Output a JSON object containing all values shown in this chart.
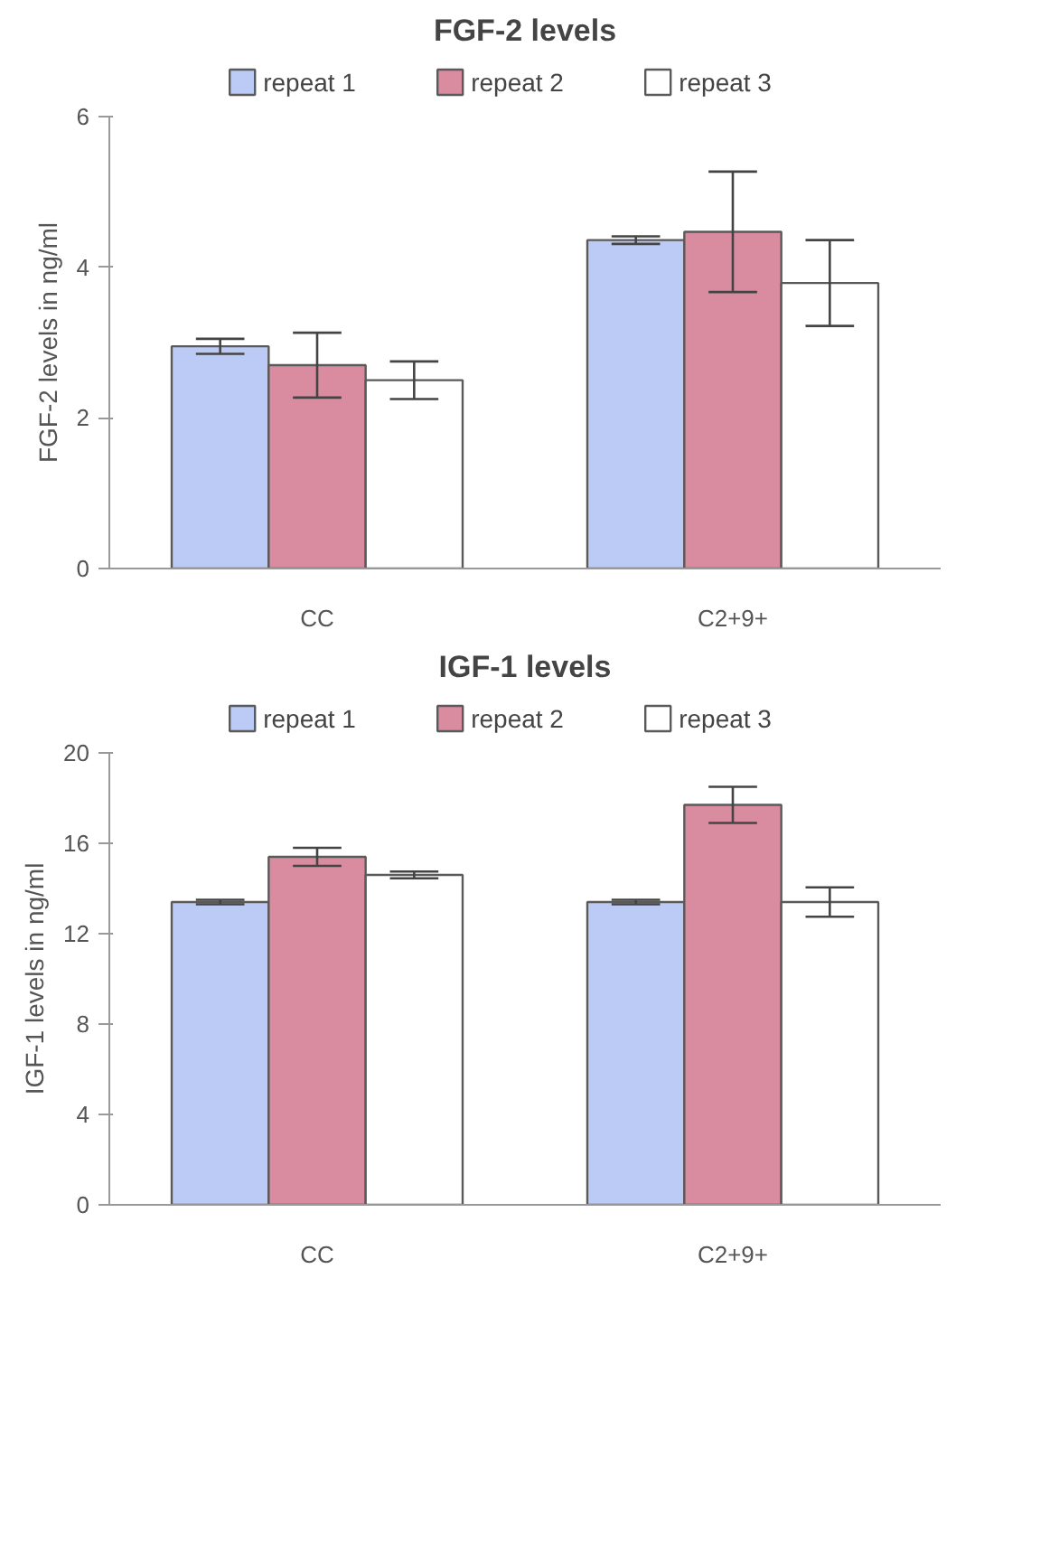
{
  "chart_data": [
    {
      "type": "bar",
      "title": "FGF-2 levels",
      "ylabel": "FGF-2 levels in ng/ml",
      "categories": [
        "CC",
        "C2+9+"
      ],
      "series": [
        {
          "name": "repeat 1",
          "color": "#bccbf5",
          "values": [
            2.95,
            4.36
          ],
          "errors": [
            0.1,
            0.05
          ]
        },
        {
          "name": "repeat 2",
          "color": "#d98ca0",
          "values": [
            2.7,
            4.47
          ],
          "errors": [
            0.43,
            0.8
          ]
        },
        {
          "name": "repeat 3",
          "color": "#ffffff",
          "values": [
            2.5,
            3.79
          ],
          "errors": [
            0.25,
            0.57
          ]
        }
      ],
      "ylim": [
        0,
        6
      ],
      "yticks": [
        0,
        2,
        4,
        6
      ],
      "grid": false,
      "legend": "top"
    },
    {
      "type": "bar",
      "title": "IGF-1 levels",
      "ylabel": "IGF-1 levels in ng/ml",
      "categories": [
        "CC",
        "C2+9+"
      ],
      "series": [
        {
          "name": "repeat 1",
          "color": "#bccbf5",
          "values": [
            13.4,
            13.4
          ],
          "errors": [
            0.1,
            0.1
          ]
        },
        {
          "name": "repeat 2",
          "color": "#d98ca0",
          "values": [
            15.4,
            17.7
          ],
          "errors": [
            0.4,
            0.8
          ]
        },
        {
          "name": "repeat 3",
          "color": "#ffffff",
          "values": [
            14.6,
            13.4
          ],
          "errors": [
            0.15,
            0.65
          ]
        }
      ],
      "ylim": [
        0,
        20
      ],
      "yticks": [
        0,
        4,
        8,
        12,
        16,
        20
      ],
      "grid": false,
      "legend": "top"
    }
  ]
}
